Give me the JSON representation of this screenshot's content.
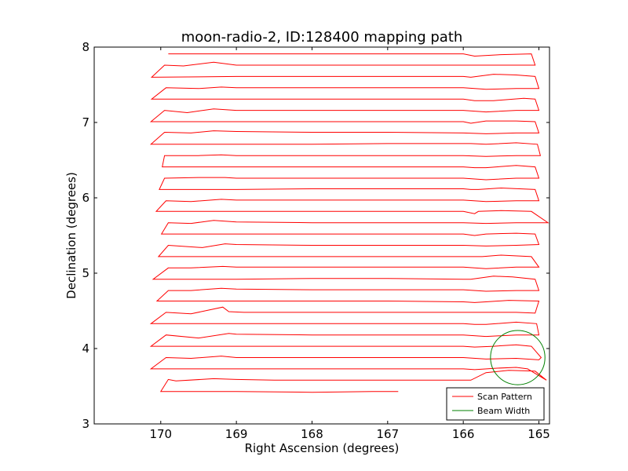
{
  "chart_data": {
    "type": "line",
    "title": "moon-radio-2, ID:128400 mapping path",
    "xlabel": "Right Ascension (degrees)",
    "ylabel": "Declination (degrees)",
    "xlim": [
      170.88,
      164.86
    ],
    "ylim": [
      3,
      8
    ],
    "x_ticks": [
      170,
      169,
      168,
      167,
      166,
      165
    ],
    "y_ticks": [
      3,
      4,
      5,
      6,
      7,
      8
    ],
    "grid": false,
    "legend_position": "lower right",
    "series": [
      {
        "name": "Scan Pattern",
        "color": "#ff0000",
        "points": [
          [
            166.86,
            3.43
          ],
          [
            167.2,
            3.43
          ],
          [
            168.0,
            3.42
          ],
          [
            169.0,
            3.43
          ],
          [
            170.0,
            3.43
          ],
          [
            169.9,
            3.59
          ],
          [
            169.8,
            3.57
          ],
          [
            169.3,
            3.6
          ],
          [
            169.0,
            3.59
          ],
          [
            168.5,
            3.58
          ],
          [
            168.0,
            3.58
          ],
          [
            167.0,
            3.58
          ],
          [
            165.9,
            3.58
          ],
          [
            165.7,
            3.68
          ],
          [
            165.4,
            3.71
          ],
          [
            165.05,
            3.7
          ],
          [
            164.9,
            3.58
          ],
          [
            165.15,
            3.73
          ],
          [
            165.3,
            3.75
          ],
          [
            165.55,
            3.74
          ],
          [
            165.85,
            3.72
          ],
          [
            166.0,
            3.73
          ],
          [
            167.0,
            3.73
          ],
          [
            168.0,
            3.73
          ],
          [
            169.0,
            3.73
          ],
          [
            170.13,
            3.73
          ],
          [
            169.93,
            3.88
          ],
          [
            169.6,
            3.87
          ],
          [
            169.2,
            3.9
          ],
          [
            169.0,
            3.88
          ],
          [
            168.0,
            3.88
          ],
          [
            167.0,
            3.88
          ],
          [
            166.0,
            3.88
          ],
          [
            165.7,
            3.86
          ],
          [
            165.3,
            3.87
          ],
          [
            165.0,
            3.85
          ],
          [
            164.97,
            3.88
          ],
          [
            165.1,
            4.03
          ],
          [
            165.3,
            4.05
          ],
          [
            165.6,
            4.03
          ],
          [
            165.85,
            4.02
          ],
          [
            166.0,
            4.03
          ],
          [
            167.0,
            4.03
          ],
          [
            168.0,
            4.03
          ],
          [
            169.0,
            4.03
          ],
          [
            170.13,
            4.03
          ],
          [
            169.93,
            4.18
          ],
          [
            169.5,
            4.14
          ],
          [
            169.1,
            4.2
          ],
          [
            169.0,
            4.19
          ],
          [
            168.0,
            4.18
          ],
          [
            167.0,
            4.18
          ],
          [
            166.0,
            4.18
          ],
          [
            165.7,
            4.16
          ],
          [
            165.3,
            4.18
          ],
          [
            165.0,
            4.18
          ],
          [
            165.03,
            4.33
          ],
          [
            165.3,
            4.35
          ],
          [
            165.7,
            4.32
          ],
          [
            165.85,
            4.32
          ],
          [
            166.0,
            4.33
          ],
          [
            167.0,
            4.33
          ],
          [
            168.0,
            4.33
          ],
          [
            169.0,
            4.33
          ],
          [
            170.13,
            4.33
          ],
          [
            169.93,
            4.48
          ],
          [
            169.6,
            4.46
          ],
          [
            169.18,
            4.55
          ],
          [
            169.1,
            4.49
          ],
          [
            168.9,
            4.48
          ],
          [
            168.0,
            4.48
          ],
          [
            167.0,
            4.48
          ],
          [
            166.0,
            4.48
          ],
          [
            165.85,
            4.48
          ],
          [
            165.6,
            4.48
          ],
          [
            165.3,
            4.48
          ],
          [
            165.05,
            4.47
          ],
          [
            165.0,
            4.63
          ],
          [
            165.4,
            4.64
          ],
          [
            165.7,
            4.62
          ],
          [
            165.85,
            4.61
          ],
          [
            166.0,
            4.62
          ],
          [
            167.0,
            4.63
          ],
          [
            168.0,
            4.63
          ],
          [
            169.0,
            4.63
          ],
          [
            170.05,
            4.63
          ],
          [
            169.9,
            4.77
          ],
          [
            169.6,
            4.77
          ],
          [
            169.2,
            4.8
          ],
          [
            169.0,
            4.79
          ],
          [
            168.0,
            4.78
          ],
          [
            167.0,
            4.78
          ],
          [
            166.0,
            4.78
          ],
          [
            165.7,
            4.76
          ],
          [
            165.3,
            4.77
          ],
          [
            165.0,
            4.77
          ],
          [
            165.05,
            4.92
          ],
          [
            165.35,
            4.95
          ],
          [
            165.6,
            4.96
          ],
          [
            165.9,
            4.92
          ],
          [
            166.0,
            4.92
          ],
          [
            167.0,
            4.93
          ],
          [
            168.0,
            4.93
          ],
          [
            169.0,
            4.92
          ],
          [
            170.1,
            4.92
          ],
          [
            169.9,
            5.07
          ],
          [
            169.6,
            5.07
          ],
          [
            169.18,
            5.09
          ],
          [
            169.0,
            5.08
          ],
          [
            168.0,
            5.08
          ],
          [
            167.0,
            5.08
          ],
          [
            166.0,
            5.08
          ],
          [
            165.7,
            5.06
          ],
          [
            165.3,
            5.08
          ],
          [
            165.0,
            5.08
          ],
          [
            165.1,
            5.22
          ],
          [
            165.5,
            5.24
          ],
          [
            165.75,
            5.22
          ],
          [
            165.85,
            5.22
          ],
          [
            166.0,
            5.22
          ],
          [
            167.0,
            5.22
          ],
          [
            168.0,
            5.22
          ],
          [
            169.0,
            5.22
          ],
          [
            170.03,
            5.22
          ],
          [
            169.9,
            5.37
          ],
          [
            169.45,
            5.34
          ],
          [
            169.15,
            5.39
          ],
          [
            169.0,
            5.38
          ],
          [
            168.0,
            5.37
          ],
          [
            167.0,
            5.37
          ],
          [
            166.0,
            5.37
          ],
          [
            165.7,
            5.36
          ],
          [
            165.3,
            5.37
          ],
          [
            165.0,
            5.38
          ],
          [
            165.05,
            5.52
          ],
          [
            165.3,
            5.53
          ],
          [
            165.7,
            5.52
          ],
          [
            165.85,
            5.5
          ],
          [
            166.0,
            5.52
          ],
          [
            167.0,
            5.52
          ],
          [
            168.0,
            5.52
          ],
          [
            169.0,
            5.52
          ],
          [
            169.99,
            5.52
          ],
          [
            169.9,
            5.67
          ],
          [
            169.6,
            5.66
          ],
          [
            169.3,
            5.7
          ],
          [
            169.0,
            5.68
          ],
          [
            168.0,
            5.67
          ],
          [
            167.0,
            5.67
          ],
          [
            166.0,
            5.67
          ],
          [
            165.7,
            5.66
          ],
          [
            165.3,
            5.67
          ],
          [
            164.88,
            5.67
          ],
          [
            165.1,
            5.82
          ],
          [
            165.5,
            5.83
          ],
          [
            165.8,
            5.82
          ],
          [
            165.85,
            5.79
          ],
          [
            166.0,
            5.82
          ],
          [
            167.0,
            5.82
          ],
          [
            168.0,
            5.82
          ],
          [
            169.0,
            5.82
          ],
          [
            170.06,
            5.82
          ],
          [
            169.93,
            5.96
          ],
          [
            169.6,
            5.95
          ],
          [
            169.2,
            5.98
          ],
          [
            169.0,
            5.97
          ],
          [
            168.0,
            5.97
          ],
          [
            167.0,
            5.97
          ],
          [
            166.0,
            5.97
          ],
          [
            165.7,
            5.95
          ],
          [
            165.3,
            5.96
          ],
          [
            165.0,
            5.96
          ],
          [
            165.05,
            6.11
          ],
          [
            165.5,
            6.13
          ],
          [
            165.8,
            6.11
          ],
          [
            165.9,
            6.11
          ],
          [
            166.0,
            6.12
          ],
          [
            167.0,
            6.12
          ],
          [
            168.0,
            6.12
          ],
          [
            169.0,
            6.11
          ],
          [
            170.02,
            6.11
          ],
          [
            169.95,
            6.26
          ],
          [
            169.5,
            6.27
          ],
          [
            169.15,
            6.27
          ],
          [
            169.0,
            6.26
          ],
          [
            168.0,
            6.26
          ],
          [
            167.0,
            6.26
          ],
          [
            166.0,
            6.26
          ],
          [
            165.7,
            6.24
          ],
          [
            165.3,
            6.26
          ],
          [
            165.0,
            6.26
          ],
          [
            165.05,
            6.41
          ],
          [
            165.3,
            6.43
          ],
          [
            165.7,
            6.4
          ],
          [
            165.85,
            6.4
          ],
          [
            166.0,
            6.41
          ],
          [
            167.0,
            6.41
          ],
          [
            168.0,
            6.41
          ],
          [
            169.0,
            6.41
          ],
          [
            169.98,
            6.41
          ],
          [
            169.95,
            6.56
          ],
          [
            169.5,
            6.56
          ],
          [
            169.2,
            6.57
          ],
          [
            169.0,
            6.56
          ],
          [
            168.0,
            6.56
          ],
          [
            167.0,
            6.56
          ],
          [
            166.0,
            6.56
          ],
          [
            165.7,
            6.55
          ],
          [
            165.3,
            6.56
          ],
          [
            164.98,
            6.56
          ],
          [
            165.02,
            6.71
          ],
          [
            165.3,
            6.73
          ],
          [
            165.7,
            6.71
          ],
          [
            165.9,
            6.72
          ],
          [
            166.0,
            6.72
          ],
          [
            167.0,
            6.72
          ],
          [
            168.0,
            6.71
          ],
          [
            169.0,
            6.71
          ],
          [
            170.13,
            6.71
          ],
          [
            169.95,
            6.87
          ],
          [
            169.6,
            6.86
          ],
          [
            169.3,
            6.89
          ],
          [
            169.0,
            6.88
          ],
          [
            168.0,
            6.87
          ],
          [
            167.0,
            6.87
          ],
          [
            166.0,
            6.86
          ],
          [
            165.7,
            6.85
          ],
          [
            165.3,
            6.86
          ],
          [
            165.0,
            6.86
          ],
          [
            165.05,
            7.01
          ],
          [
            165.3,
            7.02
          ],
          [
            165.7,
            7.02
          ],
          [
            165.9,
            6.99
          ],
          [
            166.0,
            7.01
          ],
          [
            167.0,
            7.01
          ],
          [
            168.0,
            7.01
          ],
          [
            169.0,
            7.01
          ],
          [
            170.13,
            7.01
          ],
          [
            169.95,
            7.16
          ],
          [
            169.65,
            7.13
          ],
          [
            169.3,
            7.18
          ],
          [
            169.0,
            7.16
          ],
          [
            168.0,
            7.16
          ],
          [
            167.0,
            7.16
          ],
          [
            166.0,
            7.16
          ],
          [
            165.7,
            7.14
          ],
          [
            165.3,
            7.16
          ],
          [
            165.0,
            7.16
          ],
          [
            165.05,
            7.31
          ],
          [
            165.2,
            7.32
          ],
          [
            165.6,
            7.29
          ],
          [
            165.85,
            7.29
          ],
          [
            166.0,
            7.31
          ],
          [
            167.0,
            7.31
          ],
          [
            168.0,
            7.31
          ],
          [
            169.0,
            7.31
          ],
          [
            170.12,
            7.31
          ],
          [
            169.93,
            7.46
          ],
          [
            169.5,
            7.45
          ],
          [
            169.2,
            7.47
          ],
          [
            169.0,
            7.46
          ],
          [
            168.0,
            7.46
          ],
          [
            167.0,
            7.46
          ],
          [
            166.0,
            7.46
          ],
          [
            165.7,
            7.44
          ],
          [
            165.3,
            7.45
          ],
          [
            165.0,
            7.45
          ],
          [
            165.05,
            7.61
          ],
          [
            165.3,
            7.63
          ],
          [
            165.6,
            7.64
          ],
          [
            165.9,
            7.6
          ],
          [
            166.0,
            7.61
          ],
          [
            167.0,
            7.61
          ],
          [
            168.0,
            7.61
          ],
          [
            169.0,
            7.61
          ],
          [
            170.12,
            7.6
          ],
          [
            169.95,
            7.76
          ],
          [
            169.7,
            7.75
          ],
          [
            169.3,
            7.8
          ],
          [
            169.0,
            7.76
          ],
          [
            168.0,
            7.76
          ],
          [
            167.0,
            7.76
          ],
          [
            166.0,
            7.76
          ],
          [
            165.7,
            7.76
          ],
          [
            165.3,
            7.76
          ],
          [
            165.05,
            7.76
          ],
          [
            165.1,
            7.91
          ],
          [
            165.5,
            7.9
          ],
          [
            165.85,
            7.88
          ],
          [
            166.0,
            7.91
          ],
          [
            166.5,
            7.91
          ],
          [
            167.0,
            7.91
          ],
          [
            168.0,
            7.91
          ],
          [
            169.0,
            7.91
          ],
          [
            169.9,
            7.91
          ]
        ]
      },
      {
        "name": "Beam Width",
        "color": "#008000",
        "shape": "circle",
        "center": [
          165.28,
          3.88
        ],
        "radius_deg": 0.36
      }
    ]
  }
}
